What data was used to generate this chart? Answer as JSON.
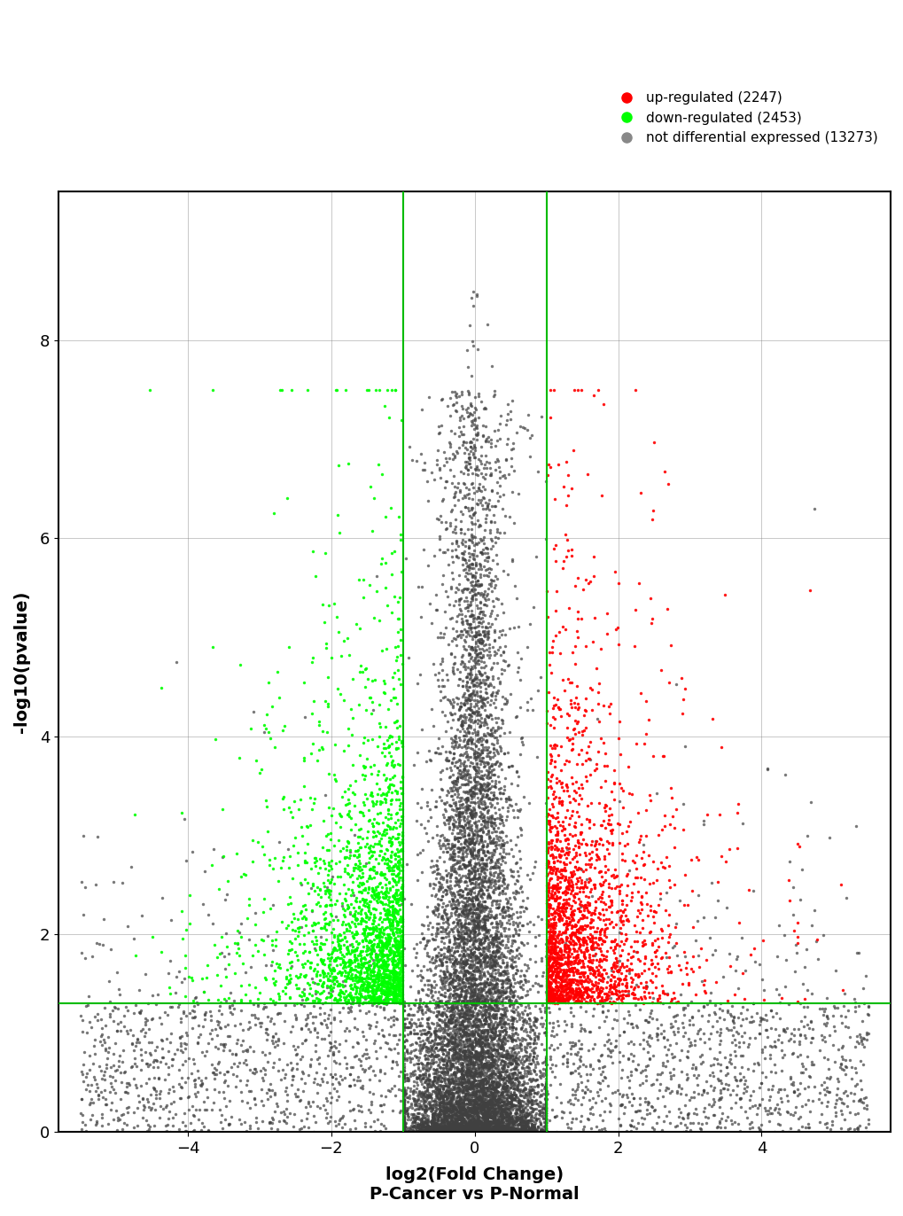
{
  "n_upregulated": 2247,
  "n_downregulated": 2453,
  "n_not_diff": 13273,
  "fc_threshold": 1.0,
  "pval_threshold": 1.301,
  "xlim": [
    -5.8,
    5.8
  ],
  "ylim": [
    0,
    9.5
  ],
  "xticks": [
    -4,
    -2,
    0,
    2,
    4
  ],
  "yticks": [
    0,
    2,
    4,
    6,
    8
  ],
  "xlabel": "log2(Fold Change)\nP-Cancer vs P-Normal",
  "ylabel": "-log10(pvalue)",
  "color_up": "#FF0000",
  "color_down": "#00FF00",
  "color_neutral": "#404040",
  "color_neutral_light": "#888888",
  "vline_color": "#00BB00",
  "hline_color": "#00BB00",
  "legend_up": "up-regulated (2247)",
  "legend_down": "down-regulated (2453)",
  "legend_neutral": "not differential expressed (13273)",
  "seed": 42,
  "marker_size": 6,
  "alpha_up": 0.9,
  "alpha_down": 0.9,
  "alpha_neutral": 0.7
}
